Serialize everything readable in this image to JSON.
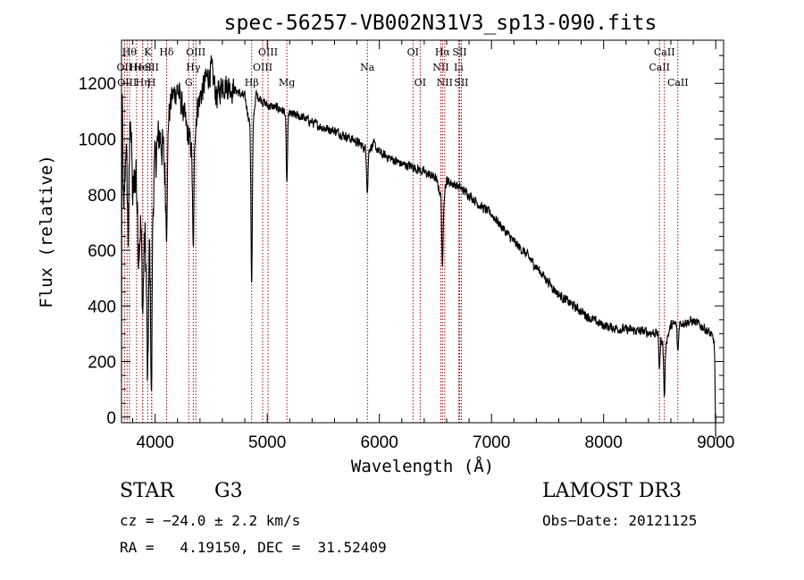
{
  "chart_data": {
    "type": "line",
    "title": "spec-56257-VB002N31V3_sp13-090.fits",
    "xlabel": "Wavelength (Å)",
    "ylabel": "Flux (relative)",
    "xlim": [
      3700,
      9070
    ],
    "ylim": [
      -20,
      1355
    ],
    "xticks": [
      4000,
      5000,
      6000,
      7000,
      8000,
      9000
    ],
    "yticks": [
      0,
      200,
      400,
      600,
      800,
      1000,
      1200
    ],
    "line_color": "#000000",
    "marker_color": "#aa0000",
    "spectrum": {
      "anchors": [
        [
          3700,
          100
        ],
        [
          3705,
          1150
        ],
        [
          3720,
          700
        ],
        [
          3740,
          1000
        ],
        [
          3760,
          650
        ],
        [
          3780,
          1130
        ],
        [
          3800,
          780
        ],
        [
          3830,
          900
        ],
        [
          3850,
          600
        ],
        [
          3870,
          700
        ],
        [
          3890,
          560
        ],
        [
          3910,
          640
        ],
        [
          3930,
          430
        ],
        [
          3950,
          620
        ],
        [
          3968,
          380
        ],
        [
          3975,
          700
        ],
        [
          3990,
          860
        ],
        [
          4010,
          950
        ],
        [
          4040,
          1020
        ],
        [
          4070,
          960
        ],
        [
          4102,
          820
        ],
        [
          4120,
          1080
        ],
        [
          4150,
          1150
        ],
        [
          4200,
          1180
        ],
        [
          4250,
          1100
        ],
        [
          4300,
          1000
        ],
        [
          4330,
          960
        ],
        [
          4350,
          1020
        ],
        [
          4380,
          1120
        ],
        [
          4400,
          1150
        ],
        [
          4450,
          1210
        ],
        [
          4500,
          1250
        ],
        [
          4550,
          1150
        ],
        [
          4600,
          1200
        ],
        [
          4700,
          1180
        ],
        [
          4800,
          1150
        ],
        [
          4861,
          1020
        ],
        [
          4900,
          1160
        ],
        [
          5000,
          1120
        ],
        [
          5100,
          1110
        ],
        [
          5200,
          1090
        ],
        [
          5300,
          1080
        ],
        [
          5400,
          1060
        ],
        [
          5500,
          1040
        ],
        [
          5600,
          1030
        ],
        [
          5700,
          1010
        ],
        [
          5800,
          990
        ],
        [
          5890,
          960
        ],
        [
          5950,
          980
        ],
        [
          6000,
          950
        ],
        [
          6100,
          930
        ],
        [
          6200,
          910
        ],
        [
          6300,
          900
        ],
        [
          6400,
          880
        ],
        [
          6500,
          860
        ],
        [
          6563,
          780
        ],
        [
          6600,
          850
        ],
        [
          6700,
          830
        ],
        [
          6800,
          800
        ],
        [
          6900,
          760
        ],
        [
          7000,
          730
        ],
        [
          7100,
          680
        ],
        [
          7200,
          630
        ],
        [
          7300,
          590
        ],
        [
          7400,
          540
        ],
        [
          7500,
          490
        ],
        [
          7600,
          440
        ],
        [
          7700,
          410
        ],
        [
          7800,
          380
        ],
        [
          7900,
          350
        ],
        [
          8000,
          330
        ],
        [
          8100,
          320
        ],
        [
          8200,
          315
        ],
        [
          8300,
          310
        ],
        [
          8400,
          305
        ],
        [
          8500,
          300
        ],
        [
          8542,
          250
        ],
        [
          8600,
          330
        ],
        [
          8700,
          340
        ],
        [
          8800,
          345
        ],
        [
          8900,
          320
        ],
        [
          8950,
          300
        ],
        [
          8990,
          270
        ],
        [
          9000,
          110
        ]
      ],
      "absorption_lines": [
        [
          3889,
          180
        ],
        [
          3934,
          350
        ],
        [
          3968,
          330
        ],
        [
          4102,
          150
        ],
        [
          4340,
          400
        ],
        [
          4861,
          550
        ],
        [
          5175,
          250
        ],
        [
          5893,
          150
        ],
        [
          6563,
          250
        ],
        [
          8498,
          120
        ],
        [
          8542,
          180
        ],
        [
          8662,
          100
        ],
        [
          9000,
          200
        ]
      ]
    },
    "line_markers": [
      {
        "wavelength": 3727,
        "label": "OII",
        "row": 1
      },
      {
        "wavelength": 3750,
        "label": "OIII",
        "row": 2
      },
      {
        "wavelength": 3771,
        "label": "Hθ",
        "row": 0
      },
      {
        "wavelength": 3835,
        "label": "He",
        "row": 1
      },
      {
        "wavelength": 3889,
        "label": "Hη",
        "row": 2
      },
      {
        "wavelength": 3889,
        "label": "HeI",
        "row": 1
      },
      {
        "wavelength": 3934,
        "label": "K",
        "row": 0
      },
      {
        "wavelength": 3968,
        "label": "H",
        "row": 2
      },
      {
        "wavelength": 3970,
        "label": "SII",
        "row": 1
      },
      {
        "wavelength": 4102,
        "label": "Hδ",
        "row": 0
      },
      {
        "wavelength": 4300,
        "label": "G",
        "row": 2
      },
      {
        "wavelength": 4340,
        "label": "Hγ",
        "row": 1
      },
      {
        "wavelength": 4363,
        "label": "OIII",
        "row": 0
      },
      {
        "wavelength": 4861,
        "label": "Hβ",
        "row": 2
      },
      {
        "wavelength": 4959,
        "label": "OIII",
        "row": 1
      },
      {
        "wavelength": 5007,
        "label": "OIII",
        "row": 0
      },
      {
        "wavelength": 5175,
        "label": "Mg",
        "row": 2
      },
      {
        "wavelength": 5893,
        "label": "Na",
        "row": 1
      },
      {
        "wavelength": 6300,
        "label": "OI",
        "row": 0
      },
      {
        "wavelength": 6364,
        "label": "OI",
        "row": 2
      },
      {
        "wavelength": 6548,
        "label": "NII",
        "row": 1
      },
      {
        "wavelength": 6563,
        "label": "Hα",
        "row": 0
      },
      {
        "wavelength": 6583,
        "label": "NII",
        "row": 2
      },
      {
        "wavelength": 6707,
        "label": "Li",
        "row": 1
      },
      {
        "wavelength": 6716,
        "label": "SII",
        "row": 0
      },
      {
        "wavelength": 6731,
        "label": "SII",
        "row": 2
      },
      {
        "wavelength": 8498,
        "label": "CaII",
        "row": 1
      },
      {
        "wavelength": 8542,
        "label": "CaII",
        "row": 0
      },
      {
        "wavelength": 8662,
        "label": "CaII",
        "row": 2
      }
    ]
  },
  "info": {
    "class_label": "STAR",
    "subclass": "G3",
    "survey": "LAMOST DR3",
    "redshift_text": "cz = −24.0 ± 2.2 km/s",
    "obs_date_text": "Obs−Date: 20121125",
    "coords_text": "RA =   4.19150, DEC =  31.52409"
  }
}
